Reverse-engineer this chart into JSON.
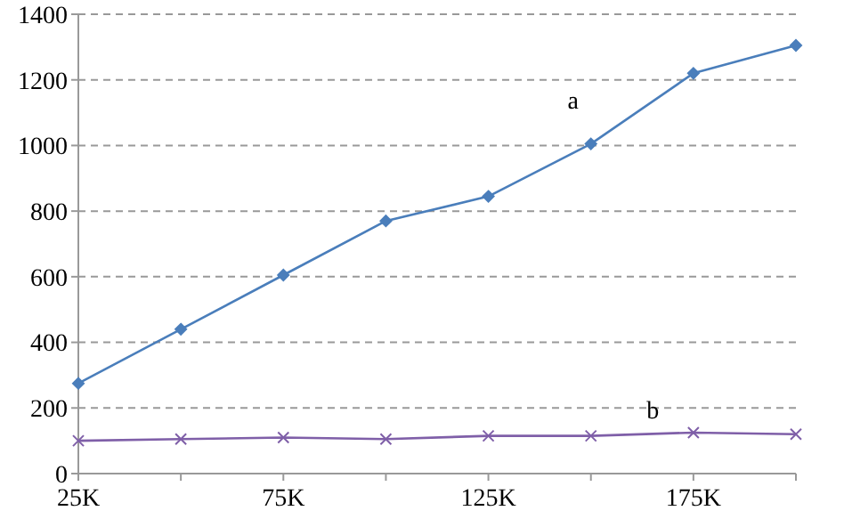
{
  "chart_data": {
    "type": "line",
    "categories": [
      "25K",
      null,
      "75K",
      null,
      "125K",
      null,
      "175K",
      null
    ],
    "series": [
      {
        "name": "a",
        "color": "#4a7ebb",
        "marker": "diamond",
        "values": [
          275,
          440,
          605,
          770,
          845,
          1005,
          1220,
          1305
        ]
      },
      {
        "name": "b",
        "color": "#7f5fa8",
        "marker": "cross",
        "values": [
          100,
          105,
          110,
          105,
          115,
          115,
          125,
          120
        ]
      }
    ],
    "ylim": [
      0,
      1400
    ],
    "yticks": [
      0,
      200,
      400,
      600,
      800,
      1000,
      1200,
      1400
    ],
    "grid": "y",
    "line_style": "solid"
  }
}
